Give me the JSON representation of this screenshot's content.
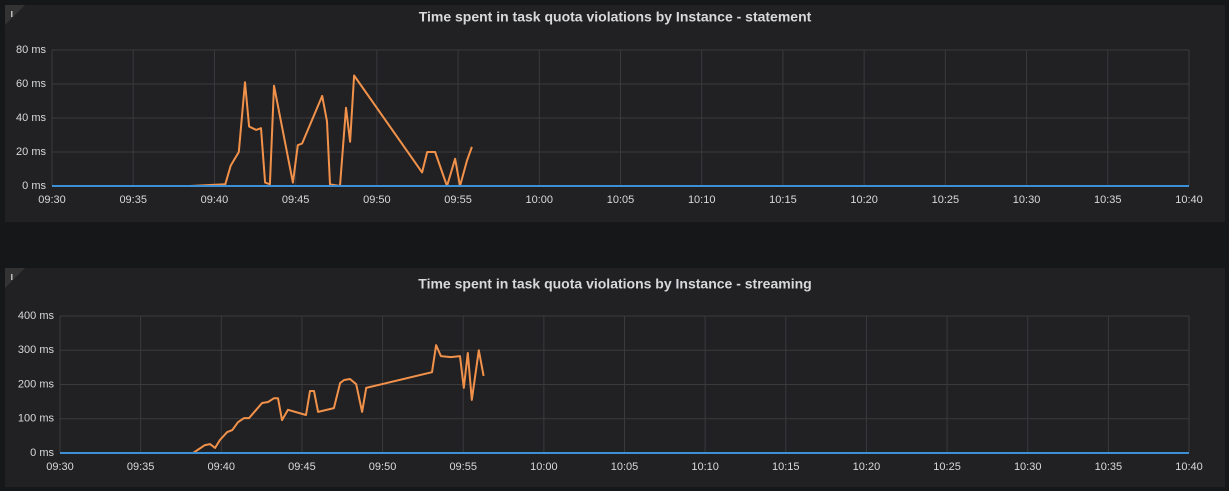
{
  "chart_data": [
    {
      "type": "line",
      "title": "Time spent in task quota violations by Instance - statement",
      "xlim": [
        "09:30",
        "10:40"
      ],
      "xticks": [
        "09:30",
        "09:35",
        "09:40",
        "09:45",
        "09:50",
        "09:55",
        "10:00",
        "10:05",
        "10:10",
        "10:15",
        "10:20",
        "10:25",
        "10:30",
        "10:35",
        "10:40"
      ],
      "ylim": [
        0,
        80
      ],
      "yticks": [
        {
          "value": 0,
          "label": "0 ms"
        },
        {
          "value": 20,
          "label": "20 ms"
        },
        {
          "value": 40,
          "label": "40 ms"
        },
        {
          "value": 60,
          "label": "60 ms"
        },
        {
          "value": 80,
          "label": "80 ms"
        }
      ],
      "grid": true,
      "series": [
        {
          "color": "#f2924a",
          "x": [
            "09:38:30",
            "09:40:40",
            "09:41:00",
            "09:41:30",
            "09:41:53",
            "09:42:08",
            "09:42:34",
            "09:42:52",
            "09:43:07",
            "09:43:25",
            "09:43:40",
            "09:44:50",
            "09:45:08",
            "09:45:24",
            "09:46:38",
            "09:46:56",
            "09:47:07",
            "09:47:44",
            "09:48:06",
            "09:48:21",
            "09:48:36",
            "09:52:47",
            "09:53:06",
            "09:53:35",
            "09:54:19",
            "09:54:49",
            "09:55:07",
            "09:55:33",
            "09:55:51"
          ],
          "values": [
            0,
            1,
            12,
            20,
            61,
            35,
            33,
            34,
            2,
            1,
            59,
            2,
            24,
            25,
            53,
            38,
            1,
            0,
            46,
            26,
            65,
            8,
            20,
            20,
            0,
            16,
            0,
            15,
            23
          ]
        },
        {
          "color": "#3d8fd6",
          "x": [
            "09:30:00",
            "10:40:00"
          ],
          "values": [
            0,
            0
          ]
        }
      ]
    },
    {
      "type": "line",
      "title": "Time spent in task quota violations by Instance - streaming",
      "xlim": [
        "09:30",
        "10:40"
      ],
      "xticks": [
        "09:30",
        "09:35",
        "09:40",
        "09:45",
        "09:50",
        "09:55",
        "10:00",
        "10:05",
        "10:10",
        "10:15",
        "10:20",
        "10:25",
        "10:30",
        "10:35",
        "10:40"
      ],
      "ylim": [
        0,
        400
      ],
      "yticks": [
        {
          "value": 0,
          "label": "0 ms"
        },
        {
          "value": 100,
          "label": "100 ms"
        },
        {
          "value": 200,
          "label": "200 ms"
        },
        {
          "value": 300,
          "label": "300 ms"
        },
        {
          "value": 400,
          "label": "400 ms"
        }
      ],
      "grid": true,
      "series": [
        {
          "color": "#f2924a",
          "x": [
            "09:38:15",
            "09:38:59",
            "09:39:18",
            "09:39:37",
            "09:39:55",
            "09:40:22",
            "09:40:41",
            "09:41:02",
            "09:41:25",
            "09:41:43",
            "09:42:10",
            "09:42:32",
            "09:42:54",
            "09:43:16",
            "09:43:31",
            "09:43:46",
            "09:44:08",
            "09:45:15",
            "09:45:30",
            "09:45:45",
            "09:46:00",
            "09:46:59",
            "09:47:22",
            "09:47:37",
            "09:47:59",
            "09:48:22",
            "09:48:44",
            "09:48:59",
            "09:53:04",
            "09:53:19",
            "09:53:37",
            "09:54:14",
            "09:54:48",
            "09:55:02",
            "09:55:17",
            "09:55:32",
            "09:55:58",
            "09:56:16"
          ],
          "values": [
            0,
            23,
            26,
            15,
            38,
            61,
            67,
            90,
            102,
            102,
            126,
            146,
            149,
            160,
            160,
            96,
            126,
            111,
            181,
            181,
            120,
            131,
            204,
            213,
            216,
            201,
            120,
            190,
            236,
            315,
            283,
            280,
            283,
            190,
            292,
            155,
            300,
            225
          ]
        },
        {
          "color": "#3d8fd6",
          "x": [
            "09:30:00",
            "10:40:00"
          ],
          "values": [
            0,
            0
          ]
        }
      ]
    }
  ]
}
